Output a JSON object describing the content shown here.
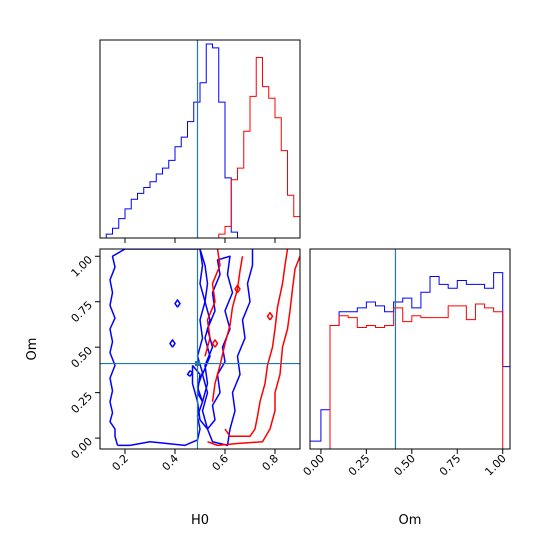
{
  "chart_data": {
    "type": "corner",
    "parameters": [
      "H0",
      "Om"
    ],
    "truth": {
      "H0": 0.49,
      "Om": 0.41
    },
    "colors": {
      "series_a": "#0000ff",
      "series_b": "#ff0000",
      "truth": "#1f77b4"
    },
    "panels": [
      {
        "id": "hist_H0",
        "type": "step-histogram",
        "xlim": [
          0.1,
          0.9
        ],
        "bin_edges": [
          0.1,
          0.125,
          0.15,
          0.175,
          0.2,
          0.225,
          0.25,
          0.275,
          0.3,
          0.325,
          0.35,
          0.375,
          0.4,
          0.425,
          0.45,
          0.475,
          0.5,
          0.525,
          0.55,
          0.575,
          0.6,
          0.625,
          0.65,
          0.675,
          0.7,
          0.725,
          0.75,
          0.775,
          0.8,
          0.825,
          0.85,
          0.875,
          0.9
        ],
        "series": [
          {
            "values": [
              0,
              0.02,
              0.05,
              0.1,
              0.15,
              0.2,
              0.23,
              0.26,
              0.29,
              0.33,
              0.36,
              0.4,
              0.47,
              0.52,
              0.6,
              0.7,
              0.8,
              1.0,
              0.98,
              0.7,
              0.31,
              0.03,
              0,
              0,
              0,
              0,
              0,
              0,
              0,
              0,
              0,
              0
            ]
          },
          {
            "values": [
              0,
              0,
              0,
              0,
              0,
              0,
              0,
              0,
              0,
              0,
              0,
              0,
              0,
              0,
              0,
              0,
              0,
              0,
              0,
              0.02,
              0.06,
              0.3,
              0.36,
              0.55,
              0.73,
              0.93,
              0.78,
              0.72,
              0.62,
              0.45,
              0.22,
              0.11
            ]
          }
        ]
      },
      {
        "id": "contour_H0_Om",
        "type": "contour",
        "xlim": [
          0.1,
          0.9
        ],
        "ylim": [
          -0.06,
          1.04
        ],
        "xticks": [
          "0.2",
          "0.4",
          "0.6",
          "0.8"
        ],
        "yticks": [
          "0.00",
          "0.25",
          "0.50",
          "0.75",
          "1.00"
        ],
        "xlabel": "H0",
        "ylabel": "Om",
        "series": [
          {
            "contours": [
              [
                [
                  0.17,
                  -0.04
                ],
                [
                  0.16,
                  0.01
                ],
                [
                  0.16,
                  0.05
                ],
                [
                  0.14,
                  0.09
                ],
                [
                  0.15,
                  0.14
                ],
                [
                  0.14,
                  0.2
                ],
                [
                  0.15,
                  0.26
                ],
                [
                  0.14,
                  0.33
                ],
                [
                  0.16,
                  0.4
                ],
                [
                  0.14,
                  0.47
                ],
                [
                  0.15,
                  0.53
                ],
                [
                  0.14,
                  0.6
                ],
                [
                  0.16,
                  0.66
                ],
                [
                  0.14,
                  0.73
                ],
                [
                  0.15,
                  0.8
                ],
                [
                  0.14,
                  0.87
                ],
                [
                  0.16,
                  0.94
                ],
                [
                  0.15,
                  1.0
                ],
                [
                  0.2,
                  1.04
                ],
                [
                  0.5,
                  1.04
                ],
                [
                  0.51,
                  0.95
                ],
                [
                  0.5,
                  0.85
                ],
                [
                  0.52,
                  0.75
                ],
                [
                  0.5,
                  0.65
                ],
                [
                  0.51,
                  0.55
                ],
                [
                  0.49,
                  0.45
                ],
                [
                  0.51,
                  0.36
                ],
                [
                  0.49,
                  0.28
                ],
                [
                  0.51,
                  0.2
                ],
                [
                  0.49,
                  0.12
                ],
                [
                  0.5,
                  0.05
                ],
                [
                  0.49,
                  -0.01
                ],
                [
                  0.44,
                  -0.04
                ],
                [
                  0.3,
                  -0.02
                ],
                [
                  0.22,
                  -0.04
                ],
                [
                  0.17,
                  -0.04
                ]
              ],
              [
                [
                  0.46,
                  0.34
                ],
                [
                  0.47,
                  0.36
                ],
                [
                  0.46,
                  0.37
                ],
                [
                  0.45,
                  0.35
                ],
                [
                  0.46,
                  0.34
                ]
              ],
              [
                [
                  0.41,
                  0.72
                ],
                [
                  0.42,
                  0.74
                ],
                [
                  0.41,
                  0.76
                ],
                [
                  0.4,
                  0.74
                ],
                [
                  0.41,
                  0.72
                ]
              ],
              [
                [
                  0.39,
                  0.5
                ],
                [
                  0.4,
                  0.52
                ],
                [
                  0.39,
                  0.54
                ],
                [
                  0.38,
                  0.52
                ],
                [
                  0.39,
                  0.5
                ]
              ],
              [
                [
                  0.5,
                  1.04
                ],
                [
                  0.52,
                  0.95
                ],
                [
                  0.53,
                  0.85
                ],
                [
                  0.52,
                  0.75
                ],
                [
                  0.54,
                  0.65
                ],
                [
                  0.52,
                  0.55
                ],
                [
                  0.54,
                  0.45
                ],
                [
                  0.51,
                  0.35
                ],
                [
                  0.53,
                  0.25
                ],
                [
                  0.51,
                  0.15
                ],
                [
                  0.53,
                  0.05
                ],
                [
                  0.55,
                  -0.02
                ],
                [
                  0.61,
                  -0.04
                ],
                [
                  0.62,
                  0.05
                ],
                [
                  0.64,
                  0.15
                ],
                [
                  0.63,
                  0.25
                ],
                [
                  0.66,
                  0.35
                ],
                [
                  0.65,
                  0.45
                ],
                [
                  0.68,
                  0.55
                ],
                [
                  0.67,
                  0.65
                ],
                [
                  0.7,
                  0.75
                ],
                [
                  0.69,
                  0.85
                ],
                [
                  0.71,
                  0.95
                ],
                [
                  0.71,
                  1.04
                ]
              ],
              [
                [
                  0.47,
                  0.4
                ],
                [
                  0.5,
                  0.35
                ],
                [
                  0.49,
                  0.25
                ],
                [
                  0.51,
                  0.2
                ],
                [
                  0.53,
                  0.3
                ],
                [
                  0.52,
                  0.4
                ],
                [
                  0.55,
                  0.5
                ],
                [
                  0.53,
                  0.6
                ],
                [
                  0.56,
                  0.7
                ],
                [
                  0.55,
                  0.8
                ],
                [
                  0.58,
                  0.9
                ],
                [
                  0.57,
                  0.98
                ],
                [
                  0.62,
                  1.0
                ],
                [
                  0.61,
                  0.9
                ],
                [
                  0.63,
                  0.8
                ],
                [
                  0.6,
                  0.7
                ],
                [
                  0.62,
                  0.6
                ],
                [
                  0.59,
                  0.5
                ],
                [
                  0.6,
                  0.42
                ],
                [
                  0.57,
                  0.35
                ],
                [
                  0.58,
                  0.25
                ],
                [
                  0.55,
                  0.18
                ],
                [
                  0.56,
                  0.1
                ],
                [
                  0.53,
                  0.05
                ],
                [
                  0.5,
                  0.1
                ],
                [
                  0.49,
                  0.2
                ],
                [
                  0.47,
                  0.3
                ],
                [
                  0.47,
                  0.4
                ]
              ]
            ]
          },
          {
            "contours": [
              [
                [
                  0.53,
                  -0.02
                ],
                [
                  0.57,
                  -0.04
                ],
                [
                  0.65,
                  -0.03
                ],
                [
                  0.75,
                  -0.02
                ],
                [
                  0.78,
                  0.05
                ],
                [
                  0.8,
                  0.15
                ],
                [
                  0.8,
                  0.25
                ],
                [
                  0.82,
                  0.35
                ],
                [
                  0.83,
                  0.5
                ],
                [
                  0.85,
                  0.6
                ],
                [
                  0.86,
                  0.7
                ],
                [
                  0.87,
                  0.82
                ],
                [
                  0.88,
                  0.93
                ],
                [
                  0.9,
                  1.0
                ]
              ],
              [
                [
                  0.6,
                  0.05
                ],
                [
                  0.62,
                  0.01
                ],
                [
                  0.7,
                  0.01
                ],
                [
                  0.72,
                  0.05
                ],
                [
                  0.73,
                  0.12
                ],
                [
                  0.74,
                  0.2
                ],
                [
                  0.76,
                  0.3
                ],
                [
                  0.77,
                  0.4
                ],
                [
                  0.79,
                  0.5
                ],
                [
                  0.8,
                  0.6
                ],
                [
                  0.81,
                  0.72
                ],
                [
                  0.83,
                  0.85
                ],
                [
                  0.84,
                  0.95
                ],
                [
                  0.85,
                  1.04
                ]
              ],
              [
                [
                  0.52,
                  0.45
                ],
                [
                  0.54,
                  0.55
                ],
                [
                  0.53,
                  0.65
                ],
                [
                  0.56,
                  0.75
                ],
                [
                  0.55,
                  0.85
                ],
                [
                  0.58,
                  0.95
                ],
                [
                  0.57,
                  1.04
                ]
              ],
              [
                [
                  0.55,
                  0.2
                ],
                [
                  0.56,
                  0.3
                ],
                [
                  0.58,
                  0.4
                ],
                [
                  0.6,
                  0.52
                ],
                [
                  0.62,
                  0.62
                ],
                [
                  0.63,
                  0.72
                ],
                [
                  0.65,
                  0.82
                ],
                [
                  0.66,
                  0.92
                ],
                [
                  0.67,
                  1.0
                ]
              ],
              [
                [
                  0.56,
                  0.5
                ],
                [
                  0.57,
                  0.52
                ],
                [
                  0.56,
                  0.54
                ],
                [
                  0.55,
                  0.52
                ],
                [
                  0.56,
                  0.5
                ]
              ],
              [
                [
                  0.65,
                  0.8
                ],
                [
                  0.66,
                  0.82
                ],
                [
                  0.65,
                  0.84
                ],
                [
                  0.64,
                  0.82
                ],
                [
                  0.65,
                  0.8
                ]
              ],
              [
                [
                  0.78,
                  0.65
                ],
                [
                  0.79,
                  0.67
                ],
                [
                  0.78,
                  0.69
                ],
                [
                  0.77,
                  0.67
                ],
                [
                  0.78,
                  0.65
                ]
              ]
            ]
          }
        ]
      },
      {
        "id": "hist_Om",
        "type": "step-histogram",
        "xlim": [
          -0.06,
          1.04
        ],
        "xticks": [
          "0.00",
          "0.25",
          "0.50",
          "0.75",
          "1.00"
        ],
        "xlabel": "Om",
        "bin_edges": [
          -0.06,
          0.0,
          0.05,
          0.1,
          0.15,
          0.2,
          0.25,
          0.3,
          0.35,
          0.4,
          0.45,
          0.5,
          0.55,
          0.6,
          0.65,
          0.7,
          0.75,
          0.8,
          0.85,
          0.9,
          0.95,
          1.0,
          1.04
        ],
        "series": [
          {
            "values": [
              0.04,
              0.2,
              0.63,
              0.7,
              0.7,
              0.72,
              0.75,
              0.73,
              0.7,
              0.75,
              0.77,
              0.72,
              0.8,
              0.88,
              0.84,
              0.82,
              0.86,
              0.84,
              0.84,
              0.82,
              0.9,
              0.42
            ]
          },
          {
            "values": [
              0,
              0.0,
              0.63,
              0.68,
              0.67,
              0.62,
              0.63,
              0.62,
              0.63,
              0.72,
              0.65,
              0.68,
              0.67,
              0.67,
              0.67,
              0.73,
              0.73,
              0.66,
              0.74,
              0.72,
              0.7,
              0.0
            ]
          }
        ]
      }
    ]
  }
}
